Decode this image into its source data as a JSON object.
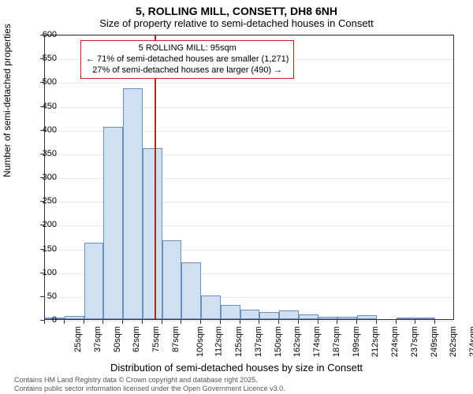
{
  "title": "5, ROLLING MILL, CONSETT, DH8 6NH",
  "subtitle": "Size of property relative to semi-detached houses in Consett",
  "y_axis_label": "Number of semi-detached properties",
  "x_axis_label": "Distribution of semi-detached houses by size in Consett",
  "footer_line1": "Contains HM Land Registry data © Crown copyright and database right 2025.",
  "footer_line2": "Contains public sector information licensed under the Open Government Licence v3.0.",
  "chart": {
    "type": "histogram",
    "ylim": [
      0,
      600
    ],
    "ytick_step": 50,
    "grid_color": "#e6e6e6",
    "axis_color": "#333333",
    "bar_fill": "#cfe0f3",
    "bar_border": "#6b8fc2",
    "background": "#ffffff",
    "vline_position": 95,
    "vline_color": "#d11a1a",
    "vline_width": 2,
    "annotation": {
      "line1": "5 ROLLING MILL: 95sqm",
      "line2": "← 71% of semi-detached houses are smaller (1,271)",
      "line3": "27% of semi-detached houses are larger (490) →",
      "border_color": "#d11a1a"
    },
    "x_start": 25,
    "x_step": 12.5,
    "categories": [
      "25sqm",
      "37sqm",
      "50sqm",
      "62sqm",
      "75sqm",
      "87sqm",
      "100sqm",
      "112sqm",
      "125sqm",
      "137sqm",
      "150sqm",
      "162sqm",
      "174sqm",
      "187sqm",
      "199sqm",
      "212sqm",
      "224sqm",
      "237sqm",
      "249sqm",
      "262sqm",
      "274sqm"
    ],
    "values": [
      4,
      6,
      160,
      405,
      485,
      360,
      165,
      120,
      50,
      30,
      20,
      15,
      18,
      10,
      5,
      5,
      8,
      0,
      2,
      4,
      0
    ]
  }
}
